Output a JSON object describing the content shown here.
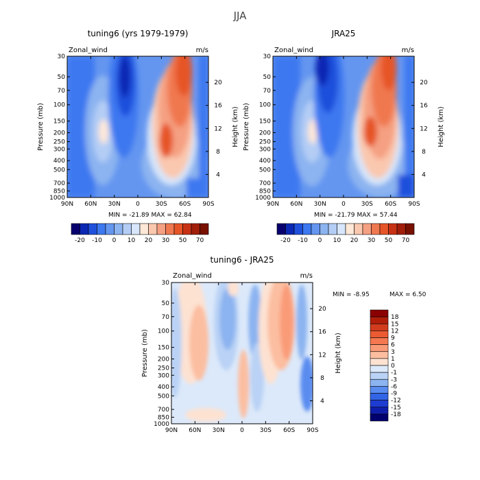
{
  "page": {
    "title": "JJA"
  },
  "panels": [
    {
      "title": "tuning6 (yrs 1979-1979)",
      "var_label": "Zonal_wind",
      "units": "m/s",
      "min_label": "MIN = -21.89",
      "max_label": "MAX = 62.84",
      "ylabel": "Pressure (mb)",
      "y2label": "Height (km)"
    },
    {
      "title": "JRA25",
      "var_label": "Zonal_wind",
      "units": "m/s",
      "min_label": "MIN = -21.79",
      "max_label": "MAX = 57.44",
      "ylabel": "Pressure (mb)",
      "y2label": "Height (km)"
    },
    {
      "title": "tuning6 - JRA25",
      "var_label": "Zonal_wind",
      "units": "m/s",
      "min_label": "MIN = -8.95",
      "max_label": "MAX = 6.50",
      "ylabel": "Pressure (mb)",
      "y2label": "Height (km)"
    }
  ],
  "chart_data": [
    {
      "type": "heatmap",
      "name": "tuning6",
      "x_ticks": [
        "90N",
        "60N",
        "30N",
        "0",
        "30S",
        "60S",
        "90S"
      ],
      "y_ticks": [
        "30",
        "50",
        "70",
        "100",
        "150",
        "200",
        "250",
        "300",
        "400",
        "500",
        "700",
        "850",
        "1000"
      ],
      "height_ticks": [
        "20",
        "16",
        "12",
        "8",
        "4"
      ],
      "min": -21.89,
      "max": 62.84,
      "colorbar_levels": [
        "-20",
        "-10",
        "0",
        "10",
        "20",
        "30",
        "50",
        "70"
      ],
      "colorbar_colors": [
        "#08006e",
        "#0a28b4",
        "#1e50dc",
        "#3c78f0",
        "#6496f0",
        "#8cb4f0",
        "#b4cdf5",
        "#d7e6fa",
        "#ffe8d7",
        "#fac8af",
        "#f5a082",
        "#f07850",
        "#e65528",
        "#c83214",
        "#a01e0a",
        "#781000"
      ]
    },
    {
      "type": "heatmap",
      "name": "JRA25",
      "x_ticks": [
        "90N",
        "60N",
        "30N",
        "0",
        "30S",
        "60S",
        "90S"
      ],
      "y_ticks": [
        "30",
        "50",
        "70",
        "100",
        "150",
        "200",
        "250",
        "300",
        "400",
        "500",
        "700",
        "850",
        "1000"
      ],
      "height_ticks": [
        "20",
        "16",
        "12",
        "8",
        "4"
      ],
      "min": -21.79,
      "max": 57.44,
      "colorbar_levels": [
        "-20",
        "-10",
        "0",
        "10",
        "20",
        "30",
        "50",
        "70"
      ],
      "colorbar_colors": [
        "#08006e",
        "#0a28b4",
        "#1e50dc",
        "#3c78f0",
        "#6496f0",
        "#8cb4f0",
        "#b4cdf5",
        "#d7e6fa",
        "#ffe8d7",
        "#fac8af",
        "#f5a082",
        "#f07850",
        "#e65528",
        "#c83214",
        "#a01e0a",
        "#781000"
      ]
    },
    {
      "type": "heatmap",
      "name": "difference",
      "x_ticks": [
        "90N",
        "60N",
        "30N",
        "0",
        "30S",
        "60S",
        "90S"
      ],
      "y_ticks": [
        "30",
        "50",
        "70",
        "100",
        "150",
        "200",
        "250",
        "300",
        "400",
        "500",
        "700",
        "850",
        "1000"
      ],
      "height_ticks": [
        "20",
        "16",
        "12",
        "8",
        "4"
      ],
      "min": -8.95,
      "max": 6.5,
      "colorbar_levels": [
        "18",
        "15",
        "12",
        "9",
        "6",
        "3",
        "1",
        "0",
        "-1",
        "-3",
        "-6",
        "-9",
        "-12",
        "-15",
        "-18"
      ],
      "colorbar_colors": [
        "#8b0000",
        "#b01e0a",
        "#d23c1e",
        "#eb5a32",
        "#f57850",
        "#fa9b78",
        "#fcbea0",
        "#fde2d2",
        "#dce9fa",
        "#b9d2f5",
        "#8cb4f0",
        "#5a8cf0",
        "#3264e6",
        "#1e3cd2",
        "#0f1eaa",
        "#00006e"
      ]
    }
  ]
}
